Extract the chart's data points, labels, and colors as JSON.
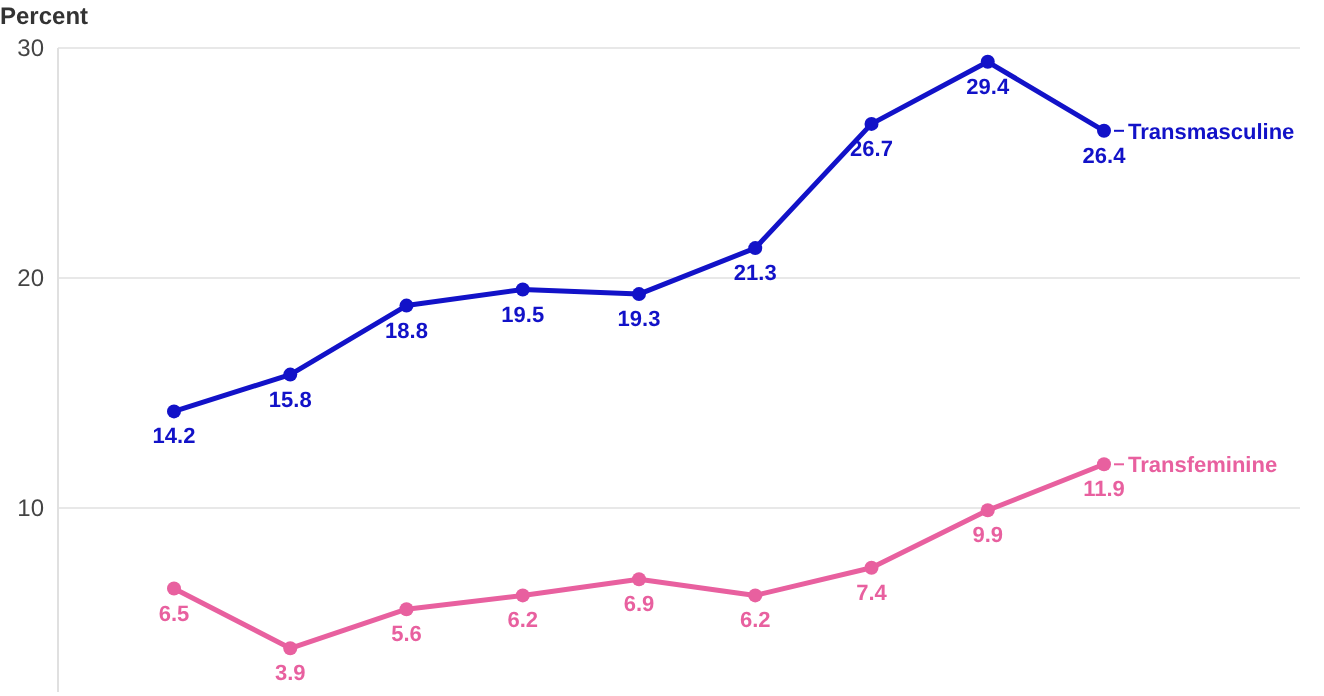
{
  "chart_data": {
    "type": "line",
    "ylabel": "Percent",
    "categories": [
      null,
      null,
      null,
      null,
      null,
      null,
      null,
      null,
      null
    ],
    "series": [
      {
        "name": "Transmasculine",
        "color": "#1212c8",
        "values": [
          14.2,
          15.8,
          18.8,
          19.5,
          19.3,
          21.3,
          26.7,
          29.4,
          26.4
        ]
      },
      {
        "name": "Transfeminine",
        "color": "#e8609f",
        "values": [
          6.5,
          3.9,
          5.6,
          6.2,
          6.9,
          6.2,
          7.4,
          9.9,
          11.9
        ]
      }
    ],
    "ylim": [
      2,
      30
    ],
    "yticks": [
      10,
      20,
      30
    ],
    "grid": "y",
    "marker": "circle",
    "line_style": "solid",
    "data_labels": true
  }
}
